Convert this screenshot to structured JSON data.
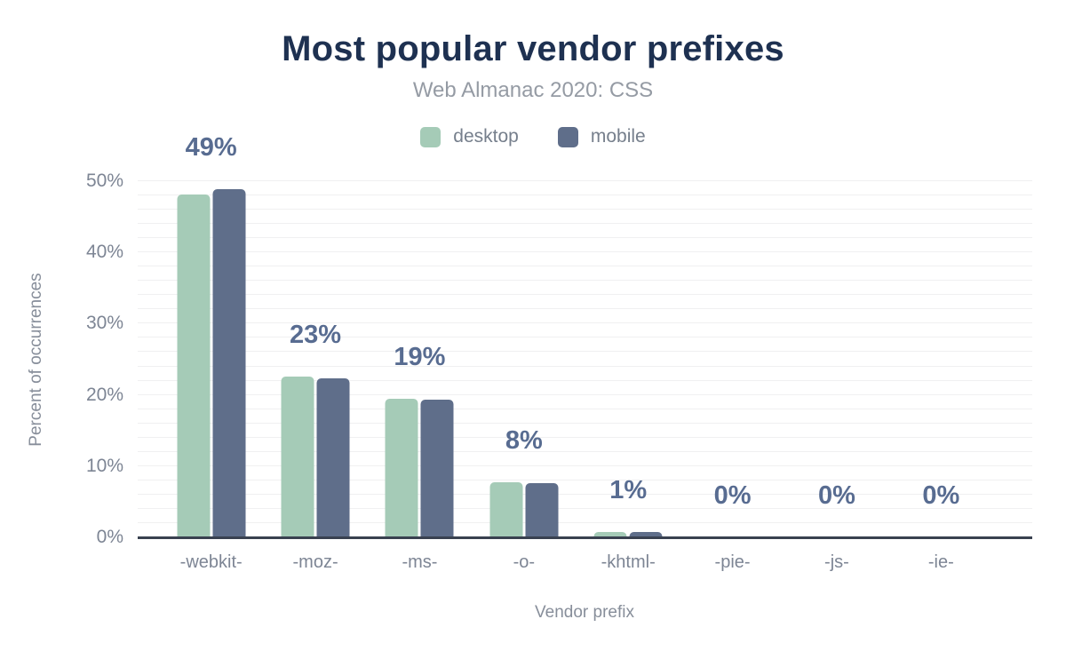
{
  "chart_data": {
    "type": "bar",
    "title": "Most popular vendor prefixes",
    "subtitle": "Web Almanac 2020: CSS",
    "xlabel": "Vendor prefix",
    "ylabel": "Percent of occurrences",
    "categories": [
      "-webkit-",
      "-moz-",
      "-ms-",
      "-o-",
      "-khtml-",
      "-pie-",
      "-js-",
      "-ie-"
    ],
    "series": [
      {
        "name": "desktop",
        "color": "#a5cbb7",
        "values": [
          48.1,
          22.6,
          19.5,
          7.7,
          0.8,
          0,
          0,
          0
        ]
      },
      {
        "name": "mobile",
        "color": "#5f6e8a",
        "values": [
          48.9,
          22.3,
          19.3,
          7.6,
          0.8,
          0,
          0,
          0
        ]
      }
    ],
    "bar_labels": [
      "49%",
      "23%",
      "19%",
      "8%",
      "1%",
      "0%",
      "0%",
      "0%"
    ],
    "y_ticks": [
      {
        "value": 0,
        "label": "0%"
      },
      {
        "value": 10,
        "label": "10%"
      },
      {
        "value": 20,
        "label": "20%"
      },
      {
        "value": 30,
        "label": "30%"
      },
      {
        "value": 40,
        "label": "40%"
      },
      {
        "value": 50,
        "label": "50%"
      }
    ],
    "ylim": [
      0,
      50
    ],
    "grid_step": 2,
    "grid_on": true,
    "legend_position": "top",
    "colors": {
      "background": "#ffffff",
      "title": "#1e3151",
      "subtitle": "#959ba4",
      "legend_text": "#767f8c",
      "data_label": "#586c91",
      "axis_line": "#394150",
      "tick_label": "#7d8594",
      "grid_line": "#f0f0f1",
      "axis_title": "#878e9a"
    }
  }
}
